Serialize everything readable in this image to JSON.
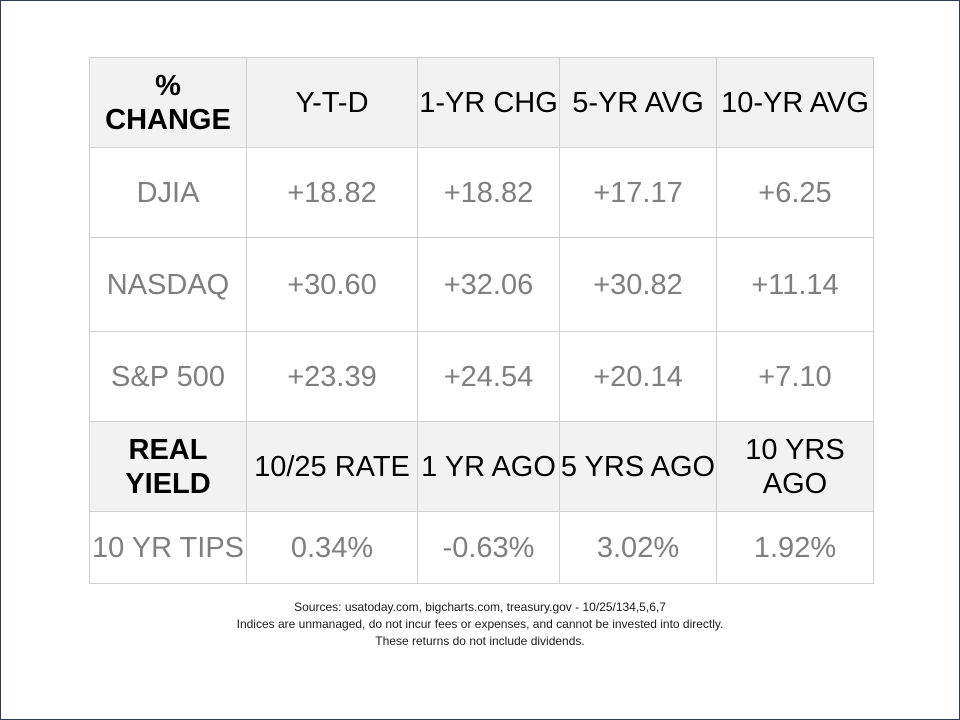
{
  "chart_data": {
    "type": "table",
    "change_header": [
      "% CHANGE",
      "Y-T-D",
      "1-YR CHG",
      "5-YR AVG",
      "10-YR AVG"
    ],
    "change_rows": [
      {
        "index": "DJIA",
        "values": [
          "+18.82",
          "+18.82",
          "+17.17",
          "+6.25"
        ]
      },
      {
        "index": "NASDAQ",
        "values": [
          "+30.60",
          "+32.06",
          "+30.82",
          "+11.14"
        ]
      },
      {
        "index": "S&P 500",
        "values": [
          "+23.39",
          "+24.54",
          "+20.14",
          "+7.10"
        ]
      }
    ],
    "yield_header": [
      "REAL YIELD",
      "10/25 RATE",
      "1 YR AGO",
      "5 YRS AGO",
      "10 YRS AGO"
    ],
    "yield_rows": [
      {
        "index": "10 YR TIPS",
        "values": [
          "0.34%",
          "-0.63%",
          "3.02%",
          "1.92%"
        ]
      }
    ]
  },
  "footer": {
    "line1": "Sources: usatoday.com, bigcharts.com, treasury.gov - 10/25/134,5,6,7",
    "line2": "Indices are unmanaged, do not incur fees or expenses, and cannot be invested into directly.",
    "line3": "These returns do not include dividends."
  }
}
